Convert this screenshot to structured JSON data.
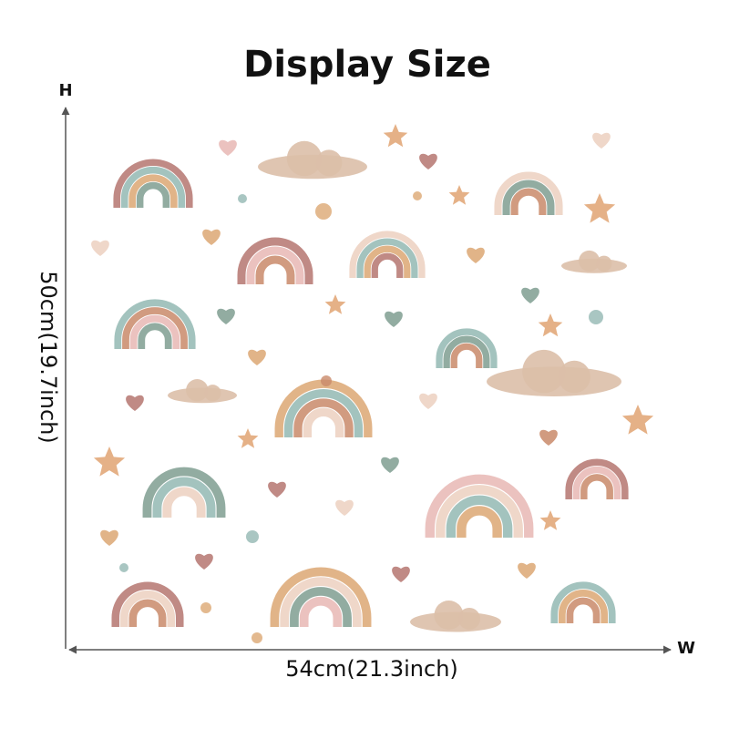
{
  "header": {
    "title": "Display Size"
  },
  "dimensions": {
    "height_marker": "H",
    "width_marker": "W",
    "height_label": "50cm(19.7inch)",
    "width_label": "54cm(21.3inch)"
  }
}
